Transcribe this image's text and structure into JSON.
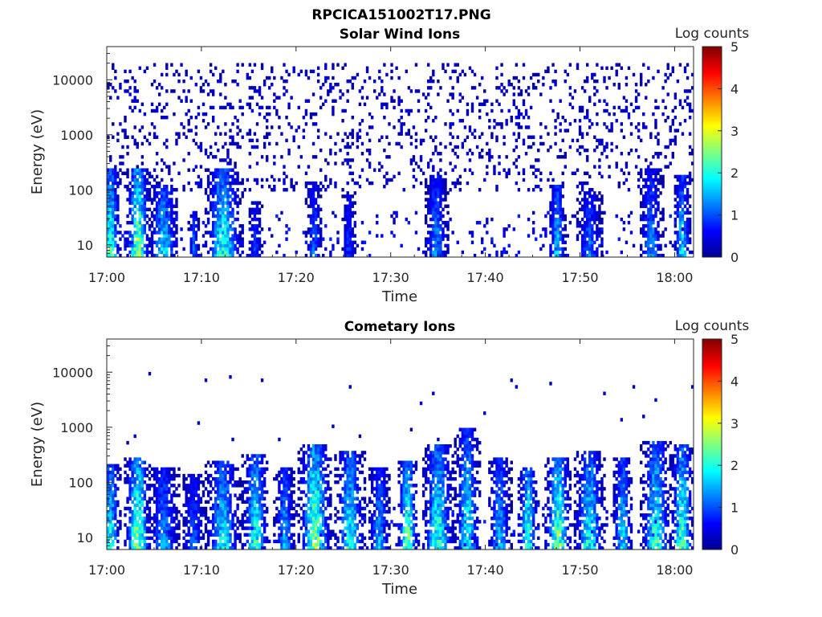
{
  "figure": {
    "title": "RPCICA151002T17.PNG"
  },
  "colors": {
    "colormap": [
      "#00008f",
      "#0000ff",
      "#0080ff",
      "#00ffff",
      "#80ff80",
      "#ffff00",
      "#ff8000",
      "#ff0000",
      "#800000"
    ],
    "axis": "#262626"
  },
  "chart_data": [
    {
      "type": "heatmap",
      "title": "Solar Wind Ions",
      "xlabel": "Time",
      "ylabel": "Energy (eV)",
      "x_ticks": [
        "17:00",
        "17:10",
        "17:20",
        "17:30",
        "17:40",
        "17:50",
        "18:00"
      ],
      "x_range_minutes": [
        0,
        62
      ],
      "y_ticks": [
        "10",
        "100",
        "1000",
        "10000"
      ],
      "y_scale": "log",
      "y_range": [
        6,
        40000
      ],
      "colorbar": {
        "label": "Log counts",
        "ticks": [
          "0",
          "1",
          "2",
          "3",
          "4",
          "5"
        ],
        "range": [
          0,
          5
        ]
      },
      "bursts": [
        {
          "t": 0.4,
          "w": 0.7,
          "emax": 250,
          "peak": 2.3
        },
        {
          "t": 3.3,
          "w": 0.8,
          "emax": 260,
          "peak": 2.9
        },
        {
          "t": 6.0,
          "w": 1.0,
          "emax": 130,
          "peak": 1.9
        },
        {
          "t": 9.2,
          "w": 0.4,
          "emax": 40,
          "peak": 1.3
        },
        {
          "t": 12.3,
          "w": 1.3,
          "emax": 260,
          "peak": 2.2
        },
        {
          "t": 15.7,
          "w": 0.5,
          "emax": 60,
          "peak": 1.0
        },
        {
          "t": 21.9,
          "w": 0.6,
          "emax": 150,
          "peak": 1.2
        },
        {
          "t": 25.6,
          "w": 0.5,
          "emax": 100,
          "peak": 1.0
        },
        {
          "t": 34.8,
          "w": 0.8,
          "emax": 200,
          "peak": 1.5
        },
        {
          "t": 47.6,
          "w": 0.6,
          "emax": 130,
          "peak": 1.8
        },
        {
          "t": 51.0,
          "w": 0.9,
          "emax": 90,
          "peak": 1.3
        },
        {
          "t": 57.5,
          "w": 0.8,
          "emax": 230,
          "peak": 1.5
        },
        {
          "t": 60.8,
          "w": 0.6,
          "emax": 200,
          "peak": 1.9
        }
      ],
      "background_density": 0.14,
      "background_emin": 100,
      "background_emax": 20000
    },
    {
      "type": "heatmap",
      "title": "Cometary Ions",
      "xlabel": "Time",
      "ylabel": "Energy (eV)",
      "x_ticks": [
        "17:00",
        "17:10",
        "17:20",
        "17:30",
        "17:40",
        "17:50",
        "18:00"
      ],
      "x_range_minutes": [
        0,
        62
      ],
      "y_ticks": [
        "10",
        "100",
        "1000",
        "10000"
      ],
      "y_scale": "log",
      "y_range": [
        6,
        40000
      ],
      "colorbar": {
        "label": "Log counts",
        "ticks": [
          "0",
          "1",
          "2",
          "3",
          "4",
          "5"
        ],
        "range": [
          0,
          5
        ]
      },
      "bursts": [
        {
          "t": 0.4,
          "w": 0.7,
          "emax": 220,
          "peak": 2.2
        },
        {
          "t": 3.3,
          "w": 0.9,
          "emax": 300,
          "peak": 2.8
        },
        {
          "t": 6.0,
          "w": 1.1,
          "emax": 200,
          "peak": 1.5
        },
        {
          "t": 9.2,
          "w": 0.8,
          "emax": 150,
          "peak": 1.2
        },
        {
          "t": 12.3,
          "w": 1.2,
          "emax": 260,
          "peak": 2.0
        },
        {
          "t": 15.7,
          "w": 0.9,
          "emax": 320,
          "peak": 2.3
        },
        {
          "t": 18.8,
          "w": 0.7,
          "emax": 180,
          "peak": 1.7
        },
        {
          "t": 22.0,
          "w": 1.1,
          "emax": 500,
          "peak": 2.8
        },
        {
          "t": 25.7,
          "w": 1.0,
          "emax": 350,
          "peak": 2.2
        },
        {
          "t": 28.8,
          "w": 0.8,
          "emax": 200,
          "peak": 1.6
        },
        {
          "t": 31.8,
          "w": 0.7,
          "emax": 250,
          "peak": 2.6
        },
        {
          "t": 35.0,
          "w": 1.1,
          "emax": 500,
          "peak": 2.3
        },
        {
          "t": 38.1,
          "w": 0.9,
          "emax": 1000,
          "peak": 2.0
        },
        {
          "t": 41.5,
          "w": 0.8,
          "emax": 300,
          "peak": 1.7
        },
        {
          "t": 44.5,
          "w": 0.7,
          "emax": 200,
          "peak": 2.4
        },
        {
          "t": 47.7,
          "w": 0.9,
          "emax": 300,
          "peak": 2.7
        },
        {
          "t": 51.0,
          "w": 1.0,
          "emax": 350,
          "peak": 2.2
        },
        {
          "t": 54.5,
          "w": 0.7,
          "emax": 300,
          "peak": 1.9
        },
        {
          "t": 58.0,
          "w": 1.0,
          "emax": 550,
          "peak": 2.3
        },
        {
          "t": 60.8,
          "w": 0.8,
          "emax": 500,
          "peak": 2.5
        }
      ],
      "background_density": 0.004,
      "background_emin": 500,
      "background_emax": 12000
    }
  ]
}
